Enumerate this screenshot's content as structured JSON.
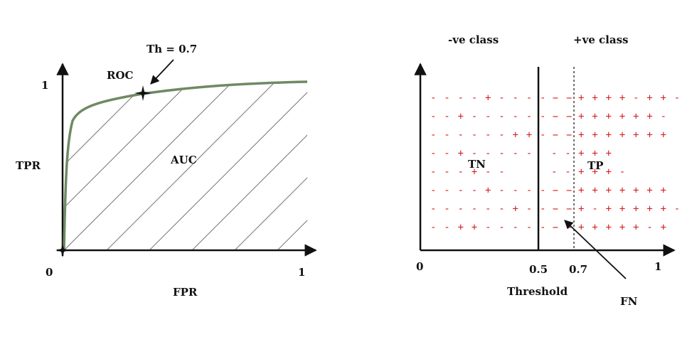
{
  "left_panel": {
    "y_axis_label": "TPR",
    "x_axis_label": "FPR",
    "origin_label": "0",
    "x_max_label": "1",
    "y_max_label": "1",
    "curve_label": "ROC",
    "area_label": "AUC",
    "threshold_label": "Th = 0.7",
    "curve_color": "#6e8a63"
  },
  "right_panel": {
    "neg_class_label": "-ve class",
    "pos_class_label": "+ve class",
    "origin_label": "0",
    "tick_05_label": "0.5",
    "tick_07_label": "0.7",
    "x_max_label": "1",
    "x_axis_label": "Threshold",
    "tn_label": "TN",
    "tp_label": "TP",
    "fn_label": "FN",
    "sign_color": "#d62020",
    "rows": [
      {
        "neg": "- - - - + - - - - - -",
        "mid": "- -",
        "pos": "+ + + + - + + -"
      },
      {
        "neg": "- - + - - - - - - - -",
        "mid": "- -",
        "pos": "+ + + + + + -"
      },
      {
        "neg": "- - - - - - + + - - -",
        "mid": "- -",
        "pos": "+ + + + + + +"
      },
      {
        "neg": "- - + - -         - - -",
        "mid": "- -",
        "pos": "+ + +"
      },
      {
        "neg": "- - -           + - -",
        "mid": "- -",
        "pos": "+ + + -"
      },
      {
        "neg": "- - - - + - - - - - -",
        "mid": "- -",
        "pos": "+ + + + + + +"
      },
      {
        "neg": "- - - - - - + - - - -",
        "mid": "- -",
        "pos": "+ - + + + + + -"
      },
      {
        "neg": "- - + + - - - - - - -",
        "mid": "- -",
        "pos": "+ + + + + - +"
      }
    ]
  }
}
